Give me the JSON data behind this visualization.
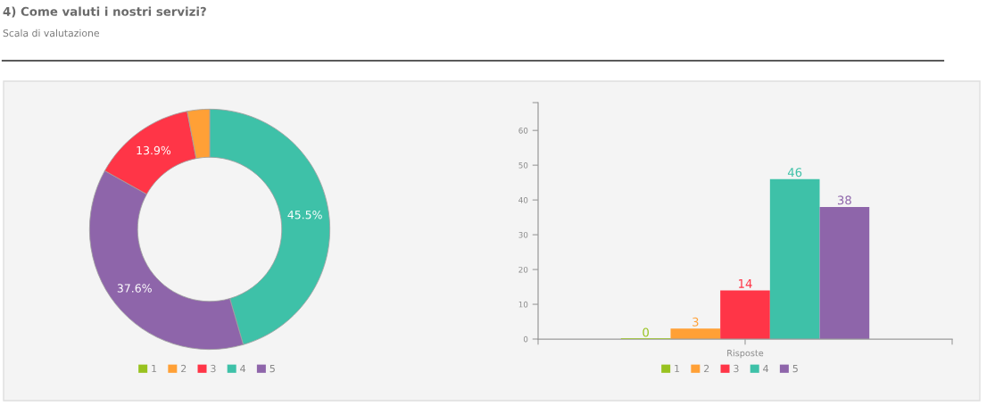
{
  "chart_data": [
    {
      "type": "donut",
      "title": "4) Come valuti i nostri servizi?",
      "subtitle": "Scala di valutazione",
      "categories": [
        "1",
        "2",
        "3",
        "4",
        "5"
      ],
      "values": [
        0,
        3.0,
        13.9,
        45.5,
        37.6
      ],
      "colors": [
        "#98c21f",
        "#ffa036",
        "#ff3547",
        "#3ec1a8",
        "#8e65aa"
      ],
      "value_labels": [
        null,
        null,
        "13.9%",
        "45.5%",
        "37.6%"
      ],
      "legend": "bottom"
    },
    {
      "type": "bar",
      "categories": [
        "Risposte"
      ],
      "series": [
        {
          "name": "1",
          "color": "#98c21f",
          "values": [
            0
          ]
        },
        {
          "name": "2",
          "color": "#ffa036",
          "values": [
            3
          ]
        },
        {
          "name": "3",
          "color": "#ff3547",
          "values": [
            14
          ]
        },
        {
          "name": "4",
          "color": "#3ec1a8",
          "values": [
            46
          ]
        },
        {
          "name": "5",
          "color": "#8e65aa",
          "values": [
            38
          ]
        }
      ],
      "ylim": [
        0,
        68
      ],
      "yticks": [
        0,
        10,
        20,
        30,
        40,
        50,
        60
      ],
      "data_labels": true,
      "legend": "bottom"
    }
  ]
}
